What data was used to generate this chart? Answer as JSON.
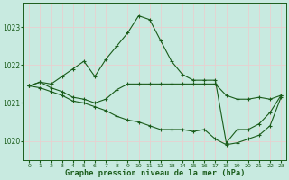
{
  "xlabel": "Graphe pression niveau de la mer (hPa)",
  "bg_color": "#c8eae0",
  "line_color": "#1a5c1a",
  "grid_color": "#e8d0d0",
  "ylim": [
    1019.5,
    1023.65
  ],
  "xlim": [
    -0.5,
    23.5
  ],
  "yticks": [
    1020,
    1021,
    1022,
    1023
  ],
  "xticks": [
    0,
    1,
    2,
    3,
    4,
    5,
    6,
    7,
    8,
    9,
    10,
    11,
    12,
    13,
    14,
    15,
    16,
    17,
    18,
    19,
    20,
    21,
    22,
    23
  ],
  "series": [
    {
      "x": [
        0,
        1,
        2,
        3,
        4,
        5,
        6,
        7,
        8,
        9,
        10,
        11,
        12,
        13,
        14,
        15,
        16,
        17,
        18,
        19,
        20,
        21,
        22,
        23
      ],
      "y": [
        1021.45,
        1021.55,
        1021.5,
        1021.7,
        1021.9,
        1022.1,
        1021.7,
        1022.15,
        1022.5,
        1022.85,
        1023.3,
        1023.2,
        1022.65,
        1022.1,
        1021.75,
        1021.6,
        1021.6,
        1021.6,
        1019.95,
        1020.3,
        1020.3,
        1020.45,
        1020.75,
        1021.2
      ]
    },
    {
      "x": [
        0,
        1,
        2,
        3,
        4,
        5,
        6,
        7,
        8,
        9,
        10,
        11,
        12,
        13,
        14,
        15,
        16,
        17,
        18,
        19,
        20,
        21,
        22,
        23
      ],
      "y": [
        1021.45,
        1021.55,
        1021.4,
        1021.3,
        1021.15,
        1021.1,
        1021.0,
        1021.1,
        1021.35,
        1021.5,
        1021.5,
        1021.5,
        1021.5,
        1021.5,
        1021.5,
        1021.5,
        1021.5,
        1021.5,
        1021.2,
        1021.1,
        1021.1,
        1021.15,
        1021.1,
        1021.2
      ]
    },
    {
      "x": [
        0,
        1,
        2,
        3,
        4,
        5,
        6,
        7,
        8,
        9,
        10,
        11,
        12,
        13,
        14,
        15,
        16,
        17,
        18,
        19,
        20,
        21,
        22,
        23
      ],
      "y": [
        1021.45,
        1021.4,
        1021.3,
        1021.2,
        1021.05,
        1021.0,
        1020.9,
        1020.8,
        1020.65,
        1020.55,
        1020.5,
        1020.4,
        1020.3,
        1020.3,
        1020.3,
        1020.25,
        1020.3,
        1020.05,
        1019.9,
        1019.95,
        1020.05,
        1020.15,
        1020.4,
        1021.15
      ]
    }
  ],
  "figsize": [
    3.2,
    2.0
  ],
  "dpi": 100
}
